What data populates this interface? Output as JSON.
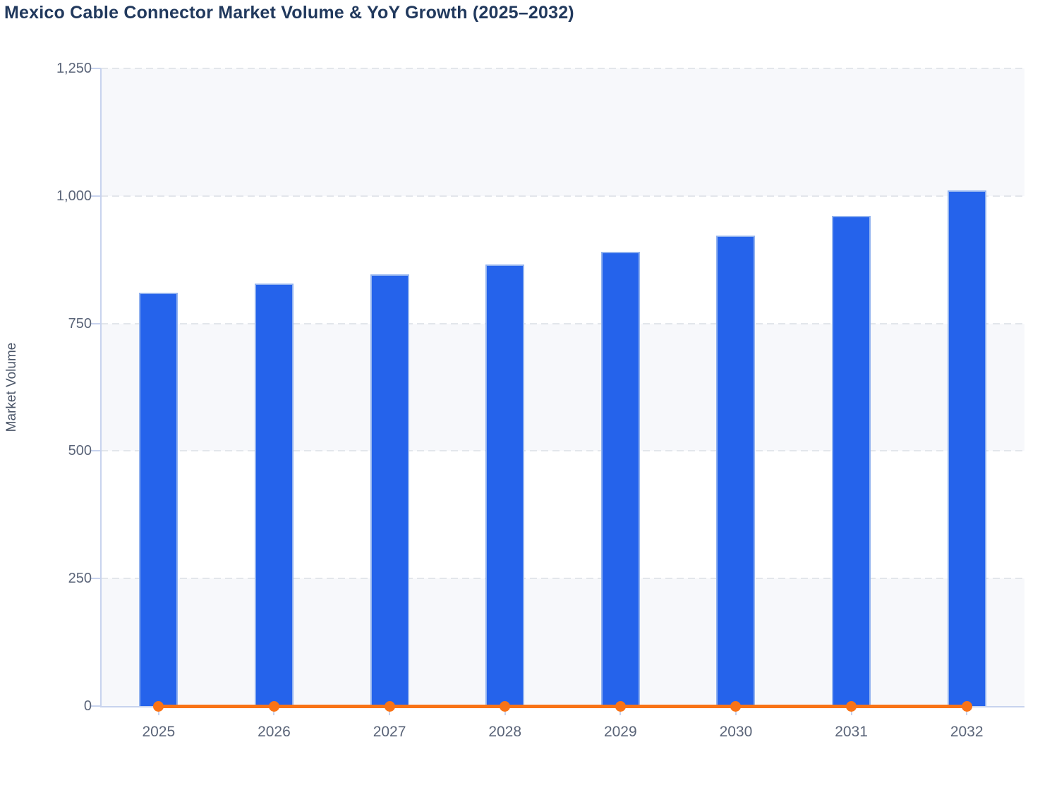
{
  "title": "Mexico Cable Connector Market Volume & YoY Growth (2025–2032)",
  "colors": {
    "bar": "#2563eb",
    "bar_border": "#93b3ef",
    "line": "#f97316",
    "title_text": "#21395d",
    "axis_title_text": "#4a5568",
    "tick_text": "#5a6478",
    "axis_line": "#c8d3ee",
    "gridline": "#e3e6eb",
    "band_fill": "#f7f8fb",
    "background": "#ffffff"
  },
  "chart_data": {
    "type": "bar",
    "title": "Mexico Cable Connector Market Volume & YoY Growth (2025–2032)",
    "categories": [
      "2025",
      "2026",
      "2027",
      "2028",
      "2029",
      "2030",
      "2031",
      "2032"
    ],
    "series": [
      {
        "name": "Market Volume",
        "type": "bar",
        "color": "#2563eb",
        "values": [
          810,
          828,
          846,
          866,
          891,
          922,
          961,
          1011
        ]
      },
      {
        "name": "YoY Growth",
        "type": "line",
        "color": "#f97316",
        "marker": "circle",
        "values": [
          0,
          0,
          0,
          0,
          0,
          0,
          0,
          0
        ]
      }
    ],
    "xlabel": "",
    "ylabel": "Market Volume",
    "ylim": [
      0,
      1250
    ],
    "yticks": [
      0,
      250,
      500,
      750,
      1000,
      1250
    ],
    "ytick_labels": [
      "0",
      "250",
      "500",
      "750",
      "1,000",
      "1,250"
    ],
    "grid": "horizontal-dashed",
    "plot_bands": "alternating shaded bands at [0-250], [500-750], [1000-1250]",
    "legend_position": "none"
  }
}
